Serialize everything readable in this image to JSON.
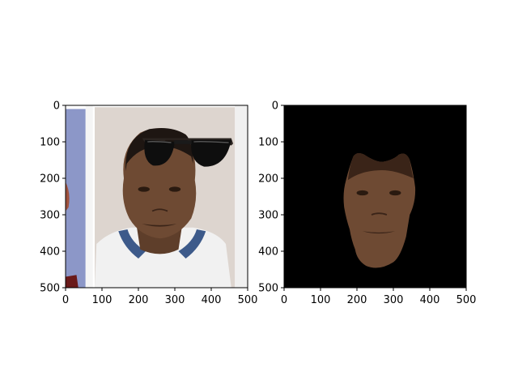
{
  "chart_data": [
    {
      "type": "image",
      "description_tag": "photo-with-sunglasses",
      "xlim": [
        0,
        500
      ],
      "ylim": [
        500,
        0
      ],
      "xticks": [
        0,
        100,
        200,
        300,
        400,
        500
      ],
      "yticks": [
        0,
        100,
        200,
        300,
        400,
        500
      ],
      "xtick_labels": [
        "0",
        "100",
        "200",
        "300",
        "400",
        "500"
      ],
      "ytick_labels": [
        "0",
        "100",
        "200",
        "300",
        "400",
        "500"
      ],
      "grid": false,
      "colors": {
        "background": "#ddd5cf",
        "left_strip": "#8c97c8",
        "jersey": "#f1f1f1",
        "skin": "#6e4a33",
        "sunglasses": "#0e0e0e"
      }
    },
    {
      "type": "image",
      "description_tag": "face-mask-on-black",
      "xlim": [
        0,
        500
      ],
      "ylim": [
        500,
        0
      ],
      "xticks": [
        0,
        100,
        200,
        300,
        400,
        500
      ],
      "yticks": [
        0,
        100,
        200,
        300,
        400,
        500
      ],
      "xtick_labels": [
        "0",
        "100",
        "200",
        "300",
        "400",
        "500"
      ],
      "ytick_labels": [
        "0",
        "100",
        "200",
        "300",
        "400",
        "500"
      ],
      "grid": false,
      "colors": {
        "background": "#000000",
        "skin": "#6e4a33"
      }
    }
  ]
}
